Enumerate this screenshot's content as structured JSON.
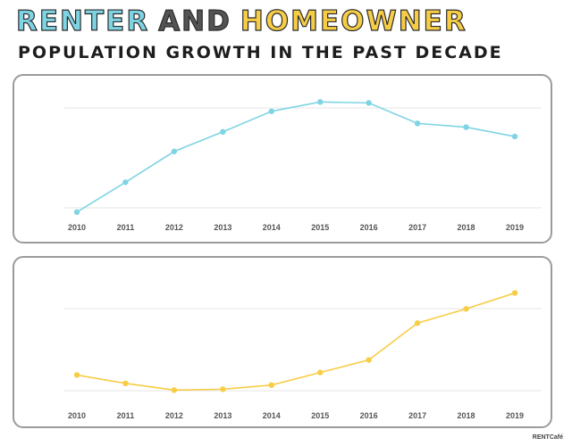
{
  "title": {
    "word1": "RENTER",
    "word2": "AND",
    "word3": "HOMEOWNER",
    "subtitle": "POPULATION GROWTH IN THE PAST DECADE"
  },
  "brand": "RENTCafé",
  "colors": {
    "renter": "#7fd4e4",
    "homeowner": "#f7cd45",
    "grid": "#e6e6e6"
  },
  "chart_data": [
    {
      "type": "line",
      "categories": [
        "2010",
        "2011",
        "2012",
        "2013",
        "2014",
        "2015",
        "2016",
        "2017",
        "2018",
        "2019"
      ],
      "series": [
        {
          "values": [
            0,
            32,
            65,
            86,
            108,
            118,
            117,
            95,
            91,
            81
          ]
        }
      ],
      "ylim": [
        -5,
        125
      ],
      "grid": true,
      "legend": "none"
    },
    {
      "type": "line",
      "categories": [
        "2010",
        "2011",
        "2012",
        "2013",
        "2014",
        "2015",
        "2016",
        "2017",
        "2018",
        "2019"
      ],
      "series": [
        {
          "values": [
            18,
            8,
            0,
            1,
            6,
            21,
            36,
            80,
            97,
            116
          ]
        }
      ],
      "ylim": [
        -5,
        125
      ],
      "grid": true,
      "legend": "none"
    }
  ]
}
